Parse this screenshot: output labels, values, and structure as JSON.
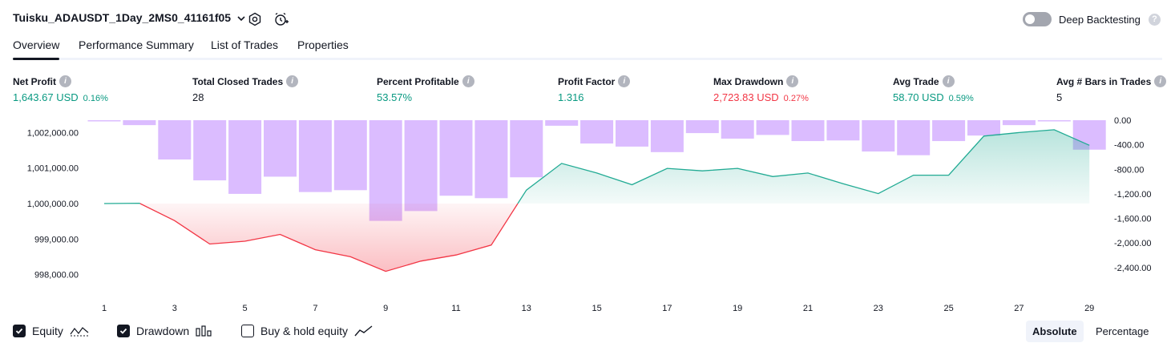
{
  "header": {
    "strategy_name": "Tuisku_ADAUSDT_1Day_2MS0_41161f05",
    "deep_backtesting_label": "Deep Backtesting",
    "deep_backtesting_enabled": false,
    "help_glyph": "?"
  },
  "tabs": [
    {
      "label": "Overview",
      "active": true
    },
    {
      "label": "Performance Summary",
      "active": false
    },
    {
      "label": "List of Trades",
      "active": false
    },
    {
      "label": "Properties",
      "active": false
    }
  ],
  "metrics": [
    {
      "label": "Net Profit",
      "value": "1,643.67 USD",
      "pct": "0.16%",
      "color": "green"
    },
    {
      "label": "Total Closed Trades",
      "value": "28",
      "pct": "",
      "color": "neutral"
    },
    {
      "label": "Percent Profitable",
      "value": "53.57%",
      "pct": "",
      "color": "green"
    },
    {
      "label": "Profit Factor",
      "value": "1.316",
      "pct": "",
      "color": "green"
    },
    {
      "label": "Max Drawdown",
      "value": "2,723.83 USD",
      "pct": "0.27%",
      "color": "red"
    },
    {
      "label": "Avg Trade",
      "value": "58.70 USD",
      "pct": "0.59%",
      "color": "green"
    },
    {
      "label": "Avg # Bars in Trades",
      "value": "5",
      "pct": "",
      "color": "neutral"
    }
  ],
  "chart_data": {
    "type": "area",
    "x": [
      1,
      2,
      3,
      4,
      5,
      6,
      7,
      8,
      9,
      10,
      11,
      12,
      13,
      14,
      15,
      16,
      17,
      18,
      19,
      20,
      21,
      22,
      23,
      24,
      25,
      26,
      27,
      28,
      29
    ],
    "x_tick_labels": [
      "1",
      "3",
      "5",
      "7",
      "9",
      "11",
      "13",
      "15",
      "17",
      "19",
      "21",
      "23",
      "25",
      "27",
      "29"
    ],
    "equity_baseline": 1000000,
    "equity": [
      1000000,
      1000010,
      999520,
      998860,
      998940,
      999130,
      998700,
      998500,
      998090,
      998380,
      998550,
      998830,
      1000380,
      1001130,
      1000860,
      1000530,
      1000990,
      1000920,
      1000990,
      1000760,
      1000860,
      1000560,
      1000280,
      1000800,
      1000800,
      1001900,
      1002000,
      1002080,
      1001640
    ],
    "drawdown": [
      0,
      -80,
      -640,
      -980,
      -1200,
      -920,
      -1170,
      -1140,
      -1640,
      -1480,
      -1230,
      -1270,
      -930,
      -90,
      -380,
      -430,
      -520,
      -210,
      -300,
      -240,
      -340,
      -330,
      -510,
      -570,
      -340,
      -250,
      -80,
      0,
      -480
    ],
    "left_axis": {
      "ticks": [
        1002000,
        1001000,
        1000000,
        999000,
        998000
      ],
      "tick_labels": [
        "1,002,000.00",
        "1,001,000.00",
        "1,000,000.00",
        "999,000.00",
        "998,000.00"
      ]
    },
    "right_axis": {
      "ticks": [
        0,
        -400,
        -800,
        -1200,
        -1600,
        -2000,
        -2400
      ],
      "tick_labels": [
        "0.00",
        "-400.00",
        "-800.00",
        "-1,200.00",
        "-1,600.00",
        "-2,000.00",
        "-2,400.00"
      ]
    },
    "colors": {
      "equity_up": "#22ab94",
      "equity_down": "#f23645",
      "drawdown_bar": "#cfa5ff"
    }
  },
  "legend": {
    "items": [
      {
        "label": "Equity",
        "checked": true,
        "icon": "equity-line-icon"
      },
      {
        "label": "Drawdown",
        "checked": true,
        "icon": "drawdown-bars-icon"
      },
      {
        "label": "Buy & hold equity",
        "checked": false,
        "icon": "buy-hold-line-icon"
      }
    ],
    "modes": [
      {
        "label": "Absolute",
        "active": true
      },
      {
        "label": "Percentage",
        "active": false
      }
    ]
  }
}
